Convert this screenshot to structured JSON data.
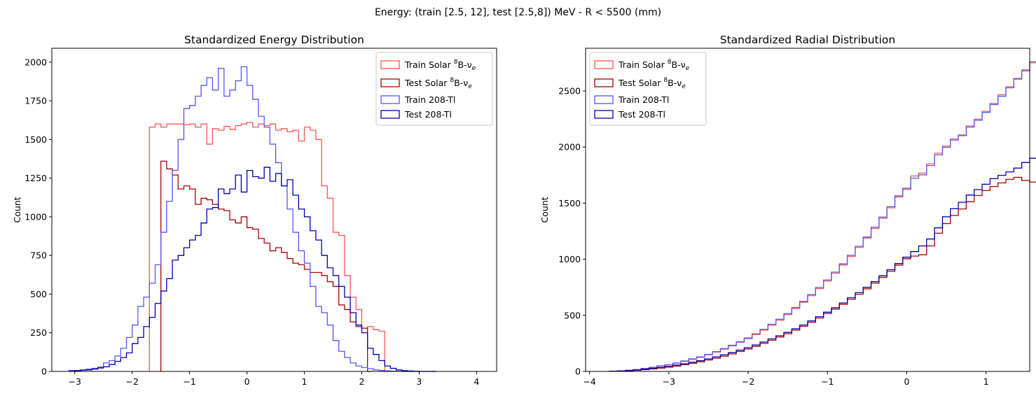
{
  "suptitle": "Energy: (train [2.5, 12], test [2.5,8]) MeV - R < 5500 (mm)",
  "series_styles": [
    {
      "name": "Train Solar ⁸B-νₑ",
      "label_main": "Train Solar ",
      "sup": "8",
      "label_mid": "B-ν",
      "sub": "e",
      "color": "#ff5555"
    },
    {
      "name": "Test Solar ⁸B-νₑ",
      "label_main": "Test Solar ",
      "sup": "8",
      "label_mid": "B-ν",
      "sub": "e",
      "color": "#aa0000"
    },
    {
      "name": "Train 208-Tl",
      "label_main": "Train 208-Tl",
      "color": "#5555ff"
    },
    {
      "name": "Test 208-Tl",
      "label_main": "Test 208-Tl",
      "color": "#0000aa"
    }
  ],
  "chart_data": [
    {
      "type": "histogram",
      "title": "Standardized Energy Distribution",
      "xlabel": "",
      "ylabel": "Count",
      "xlim": [
        -3.4,
        4.35
      ],
      "ylim": [
        0,
        2090
      ],
      "xticks": [
        -3,
        -2,
        -1,
        0,
        1,
        2,
        3,
        4
      ],
      "yticks": [
        0,
        250,
        500,
        750,
        1000,
        1250,
        1500,
        1750,
        2000
      ],
      "legend_position": "top-right",
      "series": [
        {
          "name": "Train Solar ⁸B-νₑ",
          "edges_start": -1.7,
          "bin_width": 0.1,
          "counts": [
            1580,
            1600,
            1580,
            1600,
            1600,
            1600,
            1595,
            1600,
            1580,
            1600,
            1470,
            1570,
            1560,
            1585,
            1565,
            1590,
            1600,
            1610,
            1580,
            1600,
            1590,
            1600,
            1560,
            1570,
            1550,
            1560,
            1490,
            1580,
            1560,
            1500,
            1200,
            1120,
            900,
            880,
            620,
            480,
            400,
            280,
            290,
            270,
            260,
            0
          ]
        },
        {
          "name": "Test Solar ⁸B-νₑ",
          "edges_start": -1.5,
          "bin_width": 0.1,
          "counts": [
            1360,
            1310,
            1270,
            1180,
            1200,
            1180,
            1080,
            1120,
            1110,
            1080,
            1050,
            1040,
            980,
            960,
            1000,
            930,
            920,
            860,
            830,
            780,
            800,
            770,
            730,
            700,
            690,
            660,
            640,
            640,
            620,
            580,
            550,
            430,
            400,
            320,
            290,
            280,
            0
          ]
        },
        {
          "name": "Train 208-Tl",
          "edges_start": -3.1,
          "bin_width": 0.1,
          "counts": [
            5,
            6,
            10,
            15,
            20,
            28,
            55,
            70,
            100,
            150,
            220,
            300,
            420,
            480,
            570,
            690,
            900,
            1100,
            1300,
            1500,
            1700,
            1720,
            1780,
            1850,
            1900,
            1820,
            1960,
            1780,
            1820,
            1880,
            1970,
            1850,
            1760,
            1650,
            1580,
            1470,
            1350,
            1200,
            1050,
            900,
            780,
            700,
            550,
            420,
            380,
            300,
            200,
            130,
            90,
            55,
            35,
            25,
            18,
            10,
            6,
            4,
            2,
            1,
            0,
            0,
            0,
            0,
            0,
            0
          ]
        },
        {
          "name": "Test 208-Tl",
          "edges_start": -3.1,
          "bin_width": 0.1,
          "counts": [
            4,
            5,
            8,
            10,
            15,
            22,
            30,
            45,
            65,
            90,
            120,
            180,
            220,
            290,
            350,
            440,
            520,
            600,
            720,
            750,
            800,
            850,
            880,
            960,
            1050,
            1060,
            1180,
            1150,
            1180,
            1270,
            1160,
            1300,
            1260,
            1250,
            1320,
            1230,
            1280,
            1200,
            1240,
            1140,
            1050,
            1000,
            910,
            850,
            750,
            670,
            620,
            550,
            480,
            380,
            300,
            250,
            150,
            110,
            70,
            35,
            20,
            10,
            5,
            3,
            1,
            0,
            0,
            0
          ]
        }
      ]
    },
    {
      "type": "histogram",
      "title": "Standardized Radial Distribution",
      "xlabel": "",
      "ylabel": "Count",
      "xlim": [
        -4.05,
        1.55
      ],
      "ylim": [
        0,
        2880
      ],
      "xticks": [
        -4,
        -3,
        -2,
        -1,
        0,
        1
      ],
      "yticks": [
        0,
        500,
        1000,
        1500,
        2000,
        2500
      ],
      "legend_position": "top-left",
      "series": [
        {
          "name": "Train Solar ⁸B-νₑ",
          "edges_start": -3.75,
          "bin_width": 0.1,
          "counts": [
            2,
            5,
            10,
            15,
            25,
            35,
            48,
            58,
            72,
            90,
            108,
            126,
            148,
            172,
            198,
            228,
            260,
            292,
            328,
            368,
            412,
            456,
            506,
            560,
            616,
            675,
            738,
            805,
            875,
            948,
            1025,
            1105,
            1188,
            1275,
            1365,
            1458,
            1555,
            1622,
            1742,
            1768,
            1850,
            1945,
            2008,
            2072,
            2108,
            2188,
            2248,
            2318,
            2388,
            2465,
            2538,
            2612,
            2688,
            2750
          ]
        },
        {
          "name": "Test Solar ⁸B-νₑ",
          "edges_start": -3.75,
          "bin_width": 0.1,
          "counts": [
            1,
            3,
            6,
            10,
            16,
            22,
            30,
            38,
            48,
            60,
            72,
            86,
            102,
            118,
            136,
            156,
            178,
            200,
            224,
            250,
            278,
            306,
            336,
            368,
            402,
            438,
            476,
            516,
            556,
            598,
            642,
            688,
            736,
            786,
            838,
            892,
            948,
            1004,
            1028,
            1040,
            1118,
            1232,
            1318,
            1390,
            1448,
            1512,
            1568,
            1612,
            1648,
            1680,
            1712,
            1730,
            1702,
            1688
          ]
        },
        {
          "name": "Train 208-Tl",
          "edges_start": -3.75,
          "bin_width": 0.1,
          "counts": [
            2,
            5,
            10,
            16,
            26,
            37,
            50,
            60,
            75,
            93,
            112,
            130,
            152,
            176,
            203,
            233,
            265,
            298,
            335,
            375,
            420,
            465,
            515,
            570,
            625,
            685,
            748,
            815,
            885,
            958,
            1035,
            1115,
            1198,
            1285,
            1375,
            1468,
            1565,
            1632,
            1722,
            1752,
            1835,
            1930,
            1998,
            2062,
            2102,
            2178,
            2238,
            2308,
            2378,
            2452,
            2528,
            2605,
            2678,
            2760
          ]
        },
        {
          "name": "Test 208-Tl",
          "edges_start": -3.75,
          "bin_width": 0.1,
          "counts": [
            2,
            4,
            8,
            13,
            20,
            27,
            36,
            45,
            56,
            68,
            82,
            96,
            112,
            130,
            148,
            168,
            190,
            212,
            236,
            262,
            290,
            318,
            348,
            380,
            414,
            450,
            488,
            528,
            568,
            610,
            656,
            702,
            750,
            800,
            852,
            906,
            962,
            1018,
            1068,
            1118,
            1180,
            1280,
            1378,
            1450,
            1508,
            1572,
            1620,
            1668,
            1718,
            1748,
            1778,
            1812,
            1862,
            1900
          ]
        }
      ]
    }
  ]
}
